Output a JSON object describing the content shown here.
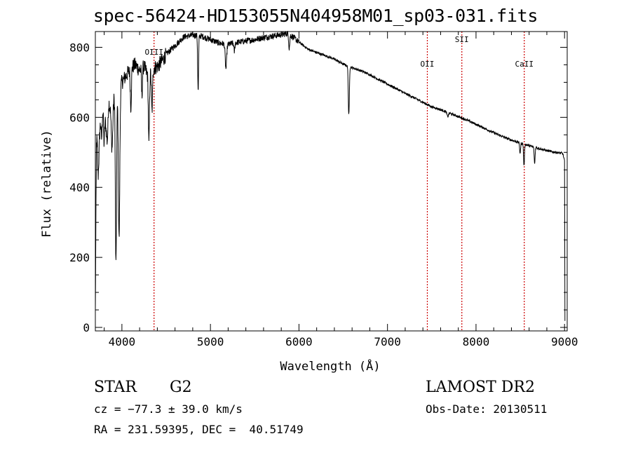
{
  "title": "spec-56424-HD153055N404958M01_sp03-031.fits",
  "info": {
    "object_class": "STAR",
    "subclass": "G2",
    "survey": "LAMOST DR2",
    "cz": "cz = −77.3 ± 39.0 km/s",
    "obs_date": "Obs-Date: 20130511",
    "radec": "RA = 231.59395, DEC =  40.51749"
  },
  "chart_data": {
    "type": "line",
    "title": "spec-56424-HD153055N404958M01_sp03-031.fits",
    "xlabel": "Wavelength (Å)",
    "ylabel": "Flux (relative)",
    "xlim": [
      3700,
      9030
    ],
    "ylim": [
      -10,
      845
    ],
    "xticks": [
      4000,
      5000,
      6000,
      7000,
      8000,
      9000
    ],
    "yticks": [
      0,
      200,
      400,
      600,
      800
    ],
    "grid": false,
    "line_color": "#000000",
    "marker_color": "#cc0000",
    "line_markers": [
      {
        "label": "OIII",
        "x": 4363
      },
      {
        "label": "OII",
        "x": 7450
      },
      {
        "label": "SII",
        "x": 7840
      },
      {
        "label": "CaII",
        "x": 8545
      }
    ],
    "continuum": [
      [
        3700,
        40
      ],
      [
        3712,
        520
      ],
      [
        3725,
        580
      ],
      [
        3740,
        510
      ],
      [
        3760,
        600
      ],
      [
        3790,
        630
      ],
      [
        3820,
        580
      ],
      [
        3850,
        650
      ],
      [
        3880,
        610
      ],
      [
        3920,
        670
      ],
      [
        3950,
        690
      ],
      [
        4000,
        700
      ],
      [
        4050,
        720
      ],
      [
        4100,
        740
      ],
      [
        4150,
        750
      ],
      [
        4200,
        735
      ],
      [
        4250,
        745
      ],
      [
        4300,
        715
      ],
      [
        4350,
        740
      ],
      [
        4400,
        745
      ],
      [
        4450,
        760
      ],
      [
        4500,
        780
      ],
      [
        4600,
        805
      ],
      [
        4700,
        830
      ],
      [
        4800,
        835
      ],
      [
        4900,
        832
      ],
      [
        5000,
        822
      ],
      [
        5100,
        812
      ],
      [
        5200,
        808
      ],
      [
        5300,
        814
      ],
      [
        5400,
        818
      ],
      [
        5500,
        822
      ],
      [
        5600,
        828
      ],
      [
        5700,
        832
      ],
      [
        5800,
        836
      ],
      [
        5880,
        840
      ],
      [
        5920,
        832
      ],
      [
        6000,
        815
      ],
      [
        6100,
        795
      ],
      [
        6200,
        785
      ],
      [
        6300,
        776
      ],
      [
        6400,
        766
      ],
      [
        6500,
        752
      ],
      [
        6600,
        742
      ],
      [
        6700,
        733
      ],
      [
        6800,
        722
      ],
      [
        6900,
        708
      ],
      [
        7000,
        695
      ],
      [
        7100,
        682
      ],
      [
        7200,
        668
      ],
      [
        7300,
        656
      ],
      [
        7400,
        643
      ],
      [
        7500,
        630
      ],
      [
        7600,
        622
      ],
      [
        7700,
        612
      ],
      [
        7800,
        602
      ],
      [
        7900,
        592
      ],
      [
        8000,
        580
      ],
      [
        8100,
        568
      ],
      [
        8200,
        556
      ],
      [
        8300,
        545
      ],
      [
        8400,
        535
      ],
      [
        8500,
        527
      ],
      [
        8600,
        519
      ],
      [
        8700,
        512
      ],
      [
        8800,
        505
      ],
      [
        8900,
        500
      ],
      [
        8980,
        497
      ],
      [
        9000,
        475
      ],
      [
        9005,
        15
      ]
    ],
    "absorption_lines": [
      {
        "x": 3730,
        "depth": 120,
        "width": 6
      },
      {
        "x": 3770,
        "depth": 70,
        "width": 6
      },
      {
        "x": 3798,
        "depth": 90,
        "width": 6
      },
      {
        "x": 3835,
        "depth": 80,
        "width": 8
      },
      {
        "x": 3889,
        "depth": 110,
        "width": 8
      },
      {
        "x": 3933,
        "depth": 500,
        "width": 7
      },
      {
        "x": 3968,
        "depth": 440,
        "width": 8
      },
      {
        "x": 4101,
        "depth": 110,
        "width": 6
      },
      {
        "x": 4226,
        "depth": 80,
        "width": 5
      },
      {
        "x": 4305,
        "depth": 195,
        "width": 6
      },
      {
        "x": 4340,
        "depth": 120,
        "width": 6
      },
      {
        "x": 4861,
        "depth": 160,
        "width": 5
      },
      {
        "x": 5175,
        "depth": 70,
        "width": 8
      },
      {
        "x": 5270,
        "depth": 25,
        "width": 5
      },
      {
        "x": 5890,
        "depth": 40,
        "width": 6
      },
      {
        "x": 6563,
        "depth": 140,
        "width": 6
      },
      {
        "x": 7680,
        "depth": 12,
        "width": 8
      },
      {
        "x": 8498,
        "depth": 30,
        "width": 5
      },
      {
        "x": 8542,
        "depth": 62,
        "width": 5
      },
      {
        "x": 8662,
        "depth": 48,
        "width": 5
      }
    ]
  }
}
